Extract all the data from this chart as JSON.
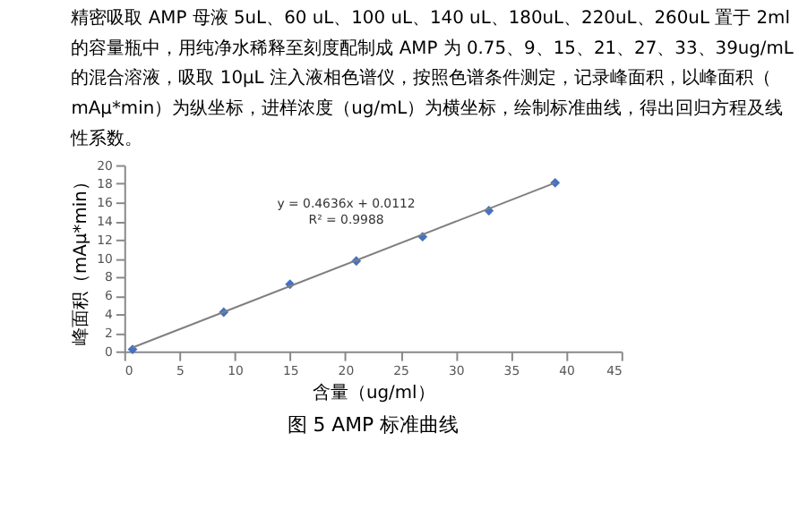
{
  "chart_data": {
    "type": "scatter",
    "title": "图 5 AMP 标准曲线",
    "subtitle": "精密吸取 AMP 母液 5uL、60 uL、100 uL、140 uL、180uL、220uL、260uL 置于 2ml 的容量瓶中，用纯净水稀释至刻度配制成 AMP 为 0.75、9、15、21、27、33、39ug/mL 的混合溶液，吸取 10μL 注入液相色谱仪，按照色谱条件测定，记录峰面积，以峰面积（mAμ*min）为纵坐标，进样浓度（ug/mL）为横坐标，绘制标准曲线，得出回归方程及线性系数。",
    "xlabel": "含量（ug/ml）",
    "ylabel": "峰面积（mAμ*min）",
    "series": [
      {
        "color": "#4472c4",
        "marker": "diamond",
        "x": [
          0.75,
          9,
          15,
          21,
          27,
          33,
          39
        ],
        "values": [
          0.2,
          4.2,
          7.2,
          9.7,
          12.3,
          15.1,
          18.1
        ]
      },
      {
        "type": "line",
        "color": "#7f7f7f",
        "marker": "none",
        "line_style": "solid",
        "x": [
          0.75,
          39
        ],
        "values": [
          0.4,
          18.1
        ]
      }
    ],
    "annotations": [
      "y = 0.4636x + 0.0112",
      "R² = 0.9988"
    ],
    "xlim": [
      0,
      45
    ],
    "xticks": [
      0,
      5,
      10,
      15,
      20,
      25,
      30,
      35,
      40,
      45
    ],
    "ylim": [
      0,
      20
    ],
    "yticks": [
      0,
      2,
      4,
      6,
      8,
      10,
      12,
      14,
      16,
      18,
      20
    ],
    "grid": false
  }
}
